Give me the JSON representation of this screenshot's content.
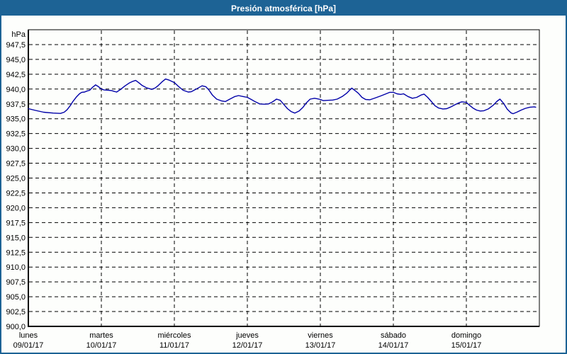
{
  "title": "Presión atmosférica [hPa]",
  "colors": {
    "accent": "#1d6395",
    "background": "#fdfefc",
    "line": "#0000a8",
    "grid": "#000000",
    "frame": "#000000",
    "text": "#000000",
    "title_text": "#ffffff"
  },
  "chart_data": {
    "type": "line",
    "title": "Presión atmosférica [hPa]",
    "unit_label": "hPa",
    "ylabel": "hPa",
    "ylim": [
      900,
      950
    ],
    "y_tick_step": 2.5,
    "grid": "dashed",
    "legend": "none",
    "y_tick_labels": [
      "947,5",
      "945,0",
      "942,5",
      "940,0",
      "937,5",
      "935,0",
      "932,5",
      "930,0",
      "927,5",
      "925,0",
      "922,5",
      "920,0",
      "917,5",
      "915,0",
      "912,5",
      "910,0",
      "907,5",
      "905,0",
      "902,5",
      "900,0"
    ],
    "x_days": [
      {
        "name": "lunes",
        "date": "09/01/17"
      },
      {
        "name": "martes",
        "date": "10/01/17"
      },
      {
        "name": "miércoles",
        "date": "11/01/17"
      },
      {
        "name": "jueves",
        "date": "12/01/17"
      },
      {
        "name": "viernes",
        "date": "13/01/17"
      },
      {
        "name": "sábado",
        "date": "14/01/17"
      },
      {
        "name": "domingo",
        "date": "15/01/17"
      }
    ],
    "series": [
      {
        "name": "Presión atmosférica",
        "x_unit": "days_from_monday_00h",
        "points": [
          [
            0.0,
            936.7
          ],
          [
            0.1,
            936.4
          ],
          [
            0.21,
            936.1
          ],
          [
            0.34,
            935.95
          ],
          [
            0.44,
            935.9
          ],
          [
            0.49,
            936.1
          ],
          [
            0.53,
            936.5
          ],
          [
            0.58,
            937.3
          ],
          [
            0.61,
            937.9
          ],
          [
            0.66,
            938.7
          ],
          [
            0.7,
            939.2
          ],
          [
            0.73,
            939.45
          ],
          [
            0.77,
            939.5
          ],
          [
            0.8,
            939.65
          ],
          [
            0.84,
            939.8
          ],
          [
            0.88,
            940.3
          ],
          [
            0.92,
            940.7
          ],
          [
            0.96,
            940.4
          ],
          [
            1.0,
            940.0
          ],
          [
            1.04,
            939.85
          ],
          [
            1.1,
            939.8
          ],
          [
            1.14,
            939.75
          ],
          [
            1.18,
            939.6
          ],
          [
            1.21,
            939.5
          ],
          [
            1.26,
            939.9
          ],
          [
            1.32,
            940.5
          ],
          [
            1.38,
            941.0
          ],
          [
            1.43,
            941.3
          ],
          [
            1.47,
            941.45
          ],
          [
            1.51,
            941.1
          ],
          [
            1.56,
            940.6
          ],
          [
            1.62,
            940.2
          ],
          [
            1.69,
            939.95
          ],
          [
            1.74,
            940.2
          ],
          [
            1.78,
            940.6
          ],
          [
            1.83,
            941.2
          ],
          [
            1.88,
            941.7
          ],
          [
            1.93,
            941.5
          ],
          [
            2.0,
            941.1
          ],
          [
            2.06,
            940.4
          ],
          [
            2.12,
            939.8
          ],
          [
            2.19,
            939.5
          ],
          [
            2.23,
            939.55
          ],
          [
            2.3,
            940.0
          ],
          [
            2.38,
            940.55
          ],
          [
            2.43,
            940.4
          ],
          [
            2.47,
            939.9
          ],
          [
            2.52,
            939.0
          ],
          [
            2.58,
            938.3
          ],
          [
            2.65,
            938.0
          ],
          [
            2.7,
            937.9
          ],
          [
            2.76,
            938.3
          ],
          [
            2.83,
            938.75
          ],
          [
            2.88,
            938.9
          ],
          [
            2.94,
            938.75
          ],
          [
            3.0,
            938.6
          ],
          [
            3.06,
            938.2
          ],
          [
            3.11,
            937.85
          ],
          [
            3.17,
            937.5
          ],
          [
            3.23,
            937.45
          ],
          [
            3.29,
            937.5
          ],
          [
            3.34,
            937.8
          ],
          [
            3.4,
            938.3
          ],
          [
            3.45,
            938.1
          ],
          [
            3.5,
            937.4
          ],
          [
            3.55,
            936.7
          ],
          [
            3.6,
            936.2
          ],
          [
            3.65,
            935.95
          ],
          [
            3.71,
            936.3
          ],
          [
            3.76,
            936.9
          ],
          [
            3.81,
            937.7
          ],
          [
            3.86,
            938.3
          ],
          [
            3.92,
            938.45
          ],
          [
            3.96,
            938.35
          ],
          [
            4.0,
            938.25
          ],
          [
            4.04,
            938.05
          ],
          [
            4.1,
            938.1
          ],
          [
            4.17,
            938.15
          ],
          [
            4.23,
            938.3
          ],
          [
            4.3,
            938.75
          ],
          [
            4.36,
            939.3
          ],
          [
            4.4,
            939.8
          ],
          [
            4.43,
            940.15
          ],
          [
            4.47,
            939.8
          ],
          [
            4.52,
            939.3
          ],
          [
            4.57,
            938.6
          ],
          [
            4.62,
            938.25
          ],
          [
            4.68,
            938.2
          ],
          [
            4.75,
            938.5
          ],
          [
            4.83,
            938.85
          ],
          [
            4.9,
            939.2
          ],
          [
            4.95,
            939.45
          ],
          [
            5.0,
            939.45
          ],
          [
            5.05,
            939.2
          ],
          [
            5.1,
            939.1
          ],
          [
            5.14,
            939.2
          ],
          [
            5.2,
            938.75
          ],
          [
            5.26,
            938.45
          ],
          [
            5.32,
            938.6
          ],
          [
            5.38,
            939.0
          ],
          [
            5.42,
            939.15
          ],
          [
            5.47,
            938.6
          ],
          [
            5.52,
            937.9
          ],
          [
            5.57,
            937.2
          ],
          [
            5.62,
            936.8
          ],
          [
            5.68,
            936.65
          ],
          [
            5.73,
            936.7
          ],
          [
            5.79,
            937.0
          ],
          [
            5.85,
            937.4
          ],
          [
            5.9,
            937.7
          ],
          [
            5.94,
            937.85
          ],
          [
            6.0,
            937.75
          ],
          [
            6.04,
            937.3
          ],
          [
            6.09,
            936.8
          ],
          [
            6.14,
            936.45
          ],
          [
            6.19,
            936.3
          ],
          [
            6.24,
            936.35
          ],
          [
            6.3,
            936.65
          ],
          [
            6.37,
            937.3
          ],
          [
            6.42,
            937.95
          ],
          [
            6.46,
            938.3
          ],
          [
            6.51,
            937.6
          ],
          [
            6.56,
            936.6
          ],
          [
            6.61,
            936.0
          ],
          [
            6.64,
            935.85
          ],
          [
            6.69,
            936.1
          ],
          [
            6.75,
            936.45
          ],
          [
            6.81,
            936.75
          ],
          [
            6.87,
            936.95
          ],
          [
            6.93,
            937.0
          ],
          [
            6.95,
            936.95
          ]
        ]
      }
    ]
  }
}
